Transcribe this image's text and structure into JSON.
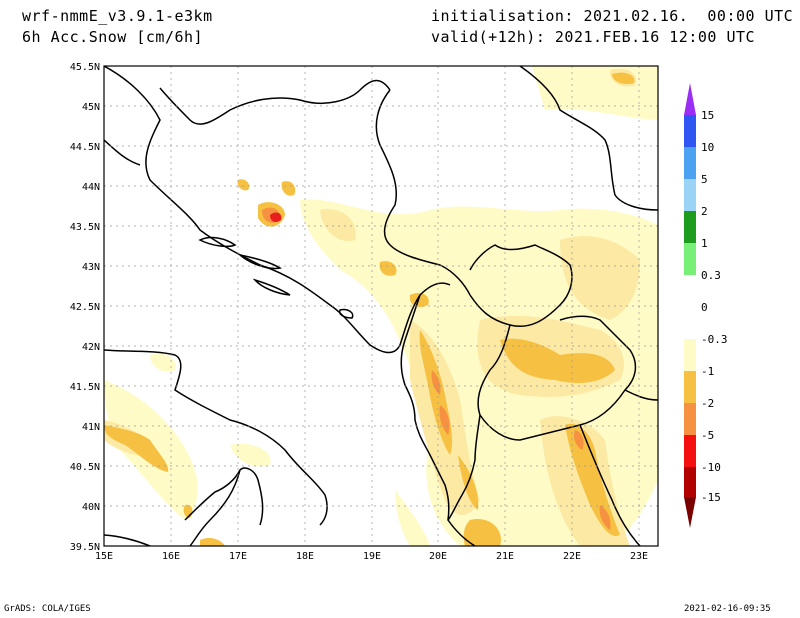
{
  "header": {
    "model": "wrf-nmmE_v3.9.1-e3km",
    "field": "6h Acc.Snow [cm/6h]",
    "init": "initialisation: 2021.02.16.  00:00 UTC",
    "valid": "valid(+12h): 2021.FEB.16 12:00 UTC"
  },
  "footer": {
    "left": "GrADS: COLA/IGES",
    "right": "2021-02-16-09:35"
  },
  "map": {
    "lon_labels": [
      "15E",
      "16E",
      "17E",
      "18E",
      "19E",
      "20E",
      "21E",
      "22E",
      "23E"
    ],
    "lat_labels": [
      "45.5N",
      "45N",
      "44.5N",
      "44N",
      "43.5N",
      "43N",
      "42.5N",
      "42N",
      "41.5N",
      "41N",
      "40.5N",
      "40N",
      "39.5N"
    ],
    "lon_range": [
      15,
      23.3
    ],
    "lat_range": [
      39.5,
      45.5
    ],
    "grid": true,
    "colors": {
      "pale": "#fffbc6",
      "light": "#fce9a4",
      "mid": "#f6c142",
      "orange": "#f59140",
      "red": "#e81e1e",
      "coast": "#000000"
    }
  },
  "colorbar": {
    "labels": [
      "15",
      "10",
      "5",
      "2",
      "1",
      "0.3",
      "0",
      "-0.3",
      "-1",
      "-2",
      "-5",
      "-10",
      "-15"
    ],
    "colors": [
      "#9a2ef5",
      "#2f56f2",
      "#4aa2f0",
      "#9ad3f5",
      "#1e9c1e",
      "#78f078",
      "#ffffff",
      "#fffbc6",
      "#f6c142",
      "#f59140",
      "#f51010",
      "#b20000",
      "#7a0000"
    ]
  }
}
